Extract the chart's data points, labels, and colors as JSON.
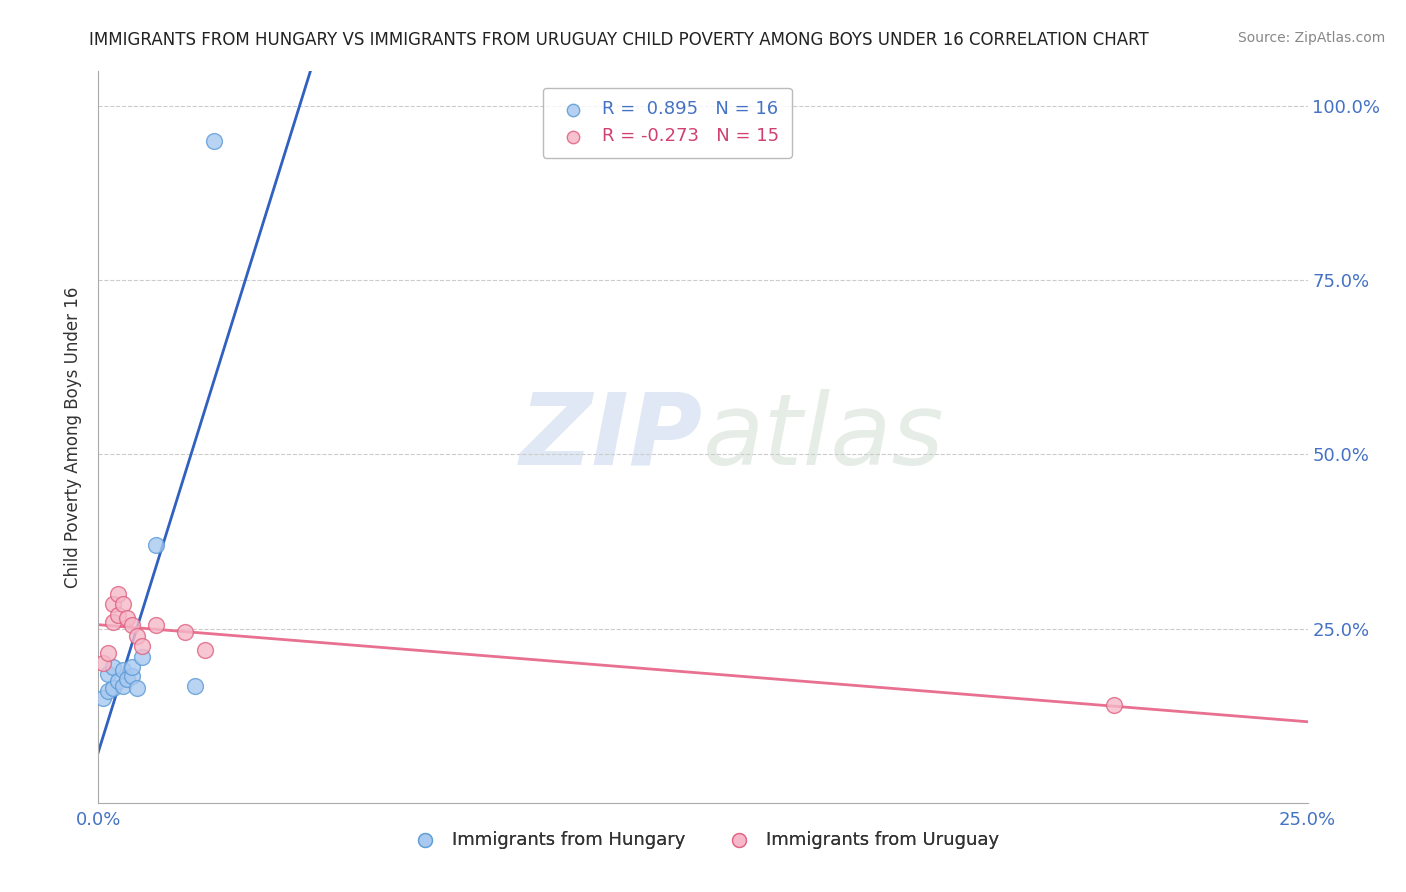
{
  "title": "IMMIGRANTS FROM HUNGARY VS IMMIGRANTS FROM URUGUAY CHILD POVERTY AMONG BOYS UNDER 16 CORRELATION CHART",
  "source": "Source: ZipAtlas.com",
  "ylabel": "Child Poverty Among Boys Under 16",
  "hungary_color": "#a8c8f0",
  "hungary_edge": "#5b9bd5",
  "uruguay_color": "#f5b8c8",
  "uruguay_edge": "#e06080",
  "trend_hungary_color": "#3060c0",
  "trend_uruguay_color": "#e87090",
  "R_hungary": 0.895,
  "N_hungary": 16,
  "R_uruguay": -0.273,
  "N_uruguay": 15,
  "hungary_x": [
    0.001,
    0.002,
    0.002,
    0.003,
    0.003,
    0.004,
    0.005,
    0.005,
    0.006,
    0.007,
    0.007,
    0.008,
    0.009,
    0.012,
    0.02,
    0.024
  ],
  "hungary_y": [
    0.15,
    0.16,
    0.185,
    0.165,
    0.195,
    0.175,
    0.19,
    0.168,
    0.178,
    0.182,
    0.195,
    0.165,
    0.21,
    0.37,
    0.168,
    0.95
  ],
  "uruguay_x": [
    0.001,
    0.002,
    0.003,
    0.003,
    0.004,
    0.004,
    0.005,
    0.006,
    0.007,
    0.008,
    0.009,
    0.012,
    0.018,
    0.022,
    0.21
  ],
  "uruguay_y": [
    0.2,
    0.215,
    0.26,
    0.285,
    0.3,
    0.27,
    0.285,
    0.265,
    0.255,
    0.24,
    0.225,
    0.255,
    0.245,
    0.22,
    0.14
  ],
  "watermark_zip": "ZIP",
  "watermark_atlas": "atlas",
  "background_color": "#ffffff",
  "grid_color": "#cccccc",
  "xlim": [
    0.0,
    0.25
  ],
  "ylim": [
    0.0,
    1.05
  ],
  "xtick_positions": [
    0.0,
    0.05,
    0.1,
    0.15,
    0.2,
    0.25
  ],
  "ytick_positions": [
    0.0,
    0.25,
    0.5,
    0.75,
    1.0
  ],
  "ytick_labels_right": [
    "",
    "25.0%",
    "50.0%",
    "75.0%",
    "100.0%"
  ],
  "xtick_labels": [
    "0.0%",
    "",
    "",
    "",
    "",
    "25.0%"
  ]
}
